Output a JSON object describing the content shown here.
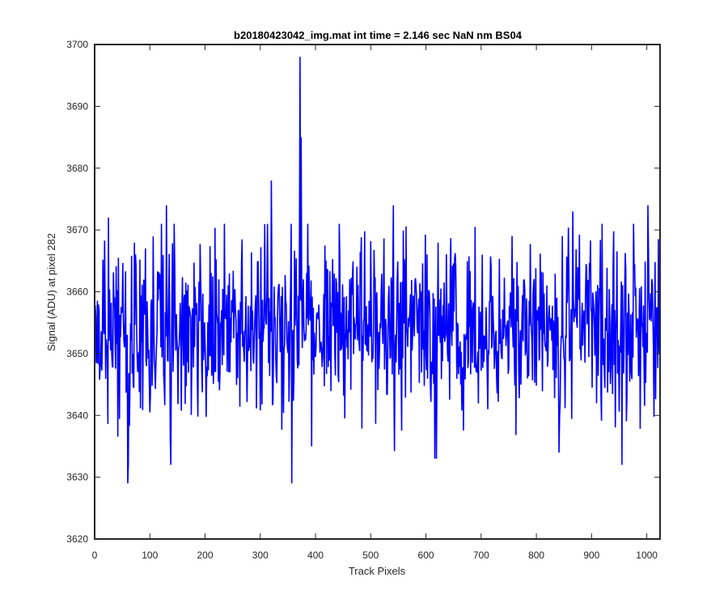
{
  "chart_data": {
    "type": "line",
    "title": "b20180423042_img.mat int time = 2.146 sec  NaN nm BS04",
    "xlabel": "Track Pixels",
    "ylabel": "Signal (ADU) at pixel 282",
    "xlim": [
      0,
      1024
    ],
    "ylim": [
      3620,
      3700
    ],
    "xticks": [
      0,
      100,
      200,
      300,
      400,
      500,
      600,
      700,
      800,
      900,
      1000
    ],
    "yticks": [
      3620,
      3630,
      3640,
      3650,
      3660,
      3670,
      3680,
      3690,
      3700
    ],
    "grid": false,
    "box": true,
    "line_color": "#0000ff",
    "series": [
      {
        "noise": {
          "n": 1024,
          "mean": 3654.5,
          "std": 7,
          "seed": 42018
        },
        "features": [
          {
            "x": 60,
            "y": 3629
          },
          {
            "x": 61,
            "y": 3632
          },
          {
            "x": 138,
            "y": 3632
          },
          {
            "x": 320,
            "y": 3678
          },
          {
            "x": 357,
            "y": 3629
          },
          {
            "x": 372,
            "y": 3698
          },
          {
            "x": 374,
            "y": 3685
          },
          {
            "x": 616,
            "y": 3633
          },
          {
            "x": 619,
            "y": 3633
          },
          {
            "x": 955,
            "y": 3632
          },
          {
            "x": 1002,
            "y": 3674
          },
          {
            "x": 541,
            "y": 3674
          },
          {
            "x": 130,
            "y": 3674
          },
          {
            "x": 866,
            "y": 3673
          },
          {
            "x": 25,
            "y": 3672
          },
          {
            "x": 393,
            "y": 3635
          }
        ]
      }
    ]
  }
}
